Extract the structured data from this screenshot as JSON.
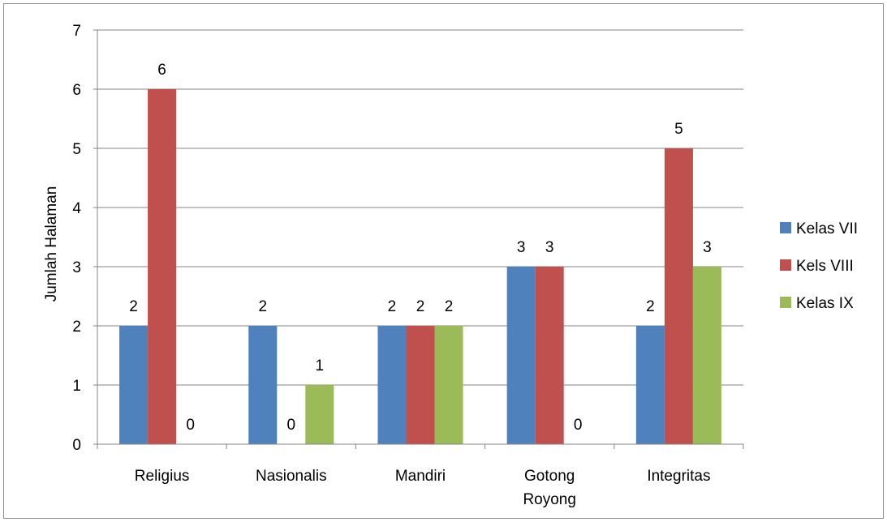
{
  "chart_data": {
    "type": "bar",
    "title": "",
    "xlabel": "",
    "ylabel": "Jumlah Halaman",
    "ylim": [
      0,
      7
    ],
    "yticks": [
      "0",
      "1",
      "2",
      "3",
      "4",
      "5",
      "6",
      "7"
    ],
    "grid": true,
    "legend_position": "right",
    "categories": [
      [
        "Religius"
      ],
      [
        "Nasionalis"
      ],
      [
        "Mandiri"
      ],
      [
        "Gotong",
        "Royong"
      ],
      [
        "Integritas"
      ]
    ],
    "series": [
      {
        "name": "Kelas VII",
        "color": "#4f81bd",
        "values": [
          2,
          2,
          2,
          3,
          2
        ]
      },
      {
        "name": "Kels VIII",
        "color": "#c0504d",
        "values": [
          6,
          0,
          2,
          3,
          5
        ]
      },
      {
        "name": "Kelas IX",
        "color": "#9bbb59",
        "values": [
          0,
          1,
          2,
          0,
          3
        ]
      }
    ]
  }
}
